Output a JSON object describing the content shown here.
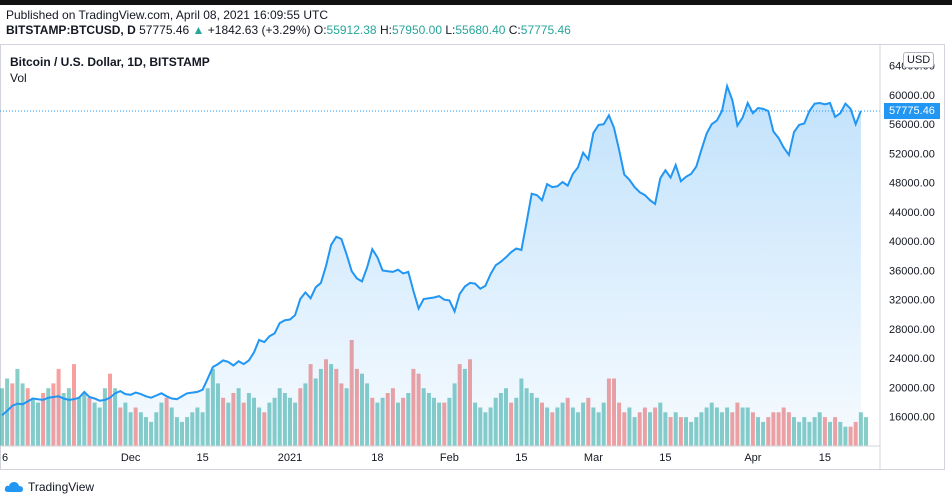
{
  "header": {
    "published": "Published on TradingView.com, April 08, 2021 16:09:55 UTC",
    "symbol": "BITSTAMP:BTCUSD, D",
    "price": "57775.46",
    "change": "+1842.63 (+3.29%)",
    "open_label": "O:",
    "open": "55912.38",
    "high_label": "H:",
    "high": "57950.00",
    "low_label": "L:",
    "low": "55680.40",
    "close_label": "C:",
    "close": "57775.46"
  },
  "legend": {
    "title": "Bitcoin / U.S. Dollar, 1D, BITSTAMP",
    "volume": "Vol",
    "currency": "USD",
    "last_price": "57775.46"
  },
  "brand": {
    "name": "TradingView"
  },
  "colors": {
    "line": "#2196f3",
    "vol_up": "#26a69a",
    "vol_down": "#ef5350",
    "last_price": "#2196f3"
  },
  "chart_data": {
    "type": "area",
    "y_ticks": [
      "64000.00",
      "60000.00",
      "56000.00",
      "52000.00",
      "48000.00",
      "44000.00",
      "40000.00",
      "36000.00",
      "32000.00",
      "28000.00",
      "24000.00",
      "20000.00",
      "16000.00"
    ],
    "y_tick_values": [
      64000,
      60000,
      56000,
      52000,
      48000,
      44000,
      40000,
      36000,
      32000,
      28000,
      24000,
      20000,
      16000
    ],
    "ylim": [
      12000,
      64500
    ],
    "x_ticks": [
      {
        "label": "6",
        "index": 0
      },
      {
        "label": "Dec",
        "index": 25
      },
      {
        "label": "15",
        "index": 39
      },
      {
        "label": "2021",
        "index": 56
      },
      {
        "label": "18",
        "index": 73
      },
      {
        "label": "Feb",
        "index": 87
      },
      {
        "label": "15",
        "index": 101
      },
      {
        "label": "Mar",
        "index": 115
      },
      {
        "label": "15",
        "index": 129
      },
      {
        "label": "Apr",
        "index": 146
      },
      {
        "label": "15",
        "index": 160
      }
    ],
    "x_count": 169,
    "series": [
      {
        "values": [
          16200,
          16800,
          17500,
          17800,
          17700,
          18100,
          18500,
          18400,
          18300,
          18600,
          18700,
          18800,
          18500,
          18300,
          18400,
          18600,
          19400,
          18700,
          18500,
          18200,
          18300,
          18600,
          19200,
          19500,
          19100,
          19000,
          19300,
          19100,
          18800,
          18600,
          18900,
          19200,
          18800,
          18500,
          18400,
          18800,
          19200,
          19300,
          19400,
          19700,
          21200,
          22800,
          23200,
          23700,
          23500,
          23000,
          23600,
          23200,
          23700,
          24800,
          26500,
          26200,
          27000,
          27400,
          28800,
          29200,
          29300,
          29900,
          32100,
          33000,
          32200,
          33700,
          34300,
          36600,
          39500,
          40600,
          40300,
          38200,
          35900,
          34900,
          34500,
          36400,
          38900,
          37800,
          36000,
          35900,
          35800,
          36100,
          35600,
          35800,
          33200,
          30800,
          32100,
          32200,
          32300,
          32500,
          32000,
          31900,
          30400,
          32800,
          33800,
          34300,
          34200,
          33500,
          33900,
          35500,
          36700,
          37200,
          37800,
          38500,
          39000,
          38800,
          42600,
          46500,
          46300,
          45600,
          47800,
          47400,
          47500,
          48100,
          47600,
          49200,
          50100,
          52100,
          51200,
          54800,
          55900,
          56000,
          57200,
          55500,
          52500,
          49100,
          48400,
          47400,
          46700,
          46300,
          45600,
          45100,
          48600,
          49700,
          48700,
          50400,
          48200,
          48800,
          49200,
          50200,
          52500,
          54700,
          56000,
          56500,
          57800,
          61200,
          59300,
          55800,
          56900,
          58900,
          57500,
          58200,
          58100,
          57800,
          55000,
          54100,
          52800,
          51800,
          54900,
          55900,
          56100,
          57800,
          58800,
          58900,
          58700,
          58900,
          57000,
          57500,
          58800,
          58100,
          56000,
          57800
        ]
      }
    ],
    "volume": {
      "values": [
        12,
        14,
        13,
        16,
        13,
        12,
        10,
        9,
        11,
        12,
        13,
        16,
        11,
        12,
        17,
        10,
        11,
        10,
        9,
        8,
        12,
        15,
        12,
        8,
        9,
        7,
        8,
        7,
        6,
        5,
        7,
        9,
        10,
        8,
        6,
        5,
        6,
        7,
        8,
        7,
        12,
        16,
        13,
        10,
        9,
        11,
        12,
        9,
        11,
        10,
        8,
        7,
        9,
        10,
        12,
        11,
        10,
        9,
        12,
        13,
        17,
        14,
        16,
        18,
        17,
        16,
        13,
        12,
        22,
        16,
        15,
        13,
        10,
        9,
        10,
        11,
        12,
        9,
        10,
        11,
        16,
        15,
        12,
        11,
        10,
        9,
        9,
        10,
        13,
        17,
        16,
        18,
        9,
        8,
        7,
        8,
        10,
        11,
        12,
        9,
        10,
        14,
        12,
        11,
        10,
        9,
        8,
        7,
        8,
        9,
        10,
        8,
        7,
        9,
        10,
        8,
        7,
        9,
        14,
        14,
        9,
        7,
        8,
        6,
        7,
        8,
        7,
        8,
        9,
        7,
        6,
        7,
        6,
        6,
        5,
        6,
        7,
        8,
        9,
        8,
        7,
        8,
        7,
        9,
        8,
        8,
        7,
        6,
        5,
        6,
        7,
        7,
        8,
        7,
        6,
        5,
        6,
        5,
        6,
        7,
        6,
        5,
        6,
        5,
        4,
        4,
        5,
        7,
        6
      ],
      "up": [
        1,
        1,
        0,
        1,
        1,
        0,
        1,
        1,
        0,
        1,
        0,
        0,
        1,
        1,
        0,
        1,
        1,
        0,
        1,
        1,
        1,
        0,
        1,
        0,
        1,
        1,
        0,
        1,
        1,
        1,
        1,
        1,
        0,
        1,
        1,
        1,
        1,
        1,
        1,
        1,
        1,
        1,
        1,
        0,
        1,
        0,
        1,
        0,
        1,
        1,
        1,
        0,
        1,
        1,
        1,
        1,
        1,
        1,
        0,
        1,
        0,
        1,
        1,
        0,
        1,
        0,
        0,
        1,
        0,
        0,
        1,
        1,
        0,
        1,
        1,
        0,
        0,
        1,
        0,
        1,
        0,
        0,
        1,
        1,
        1,
        1,
        0,
        1,
        1,
        0,
        1,
        0,
        1,
        1,
        1,
        1,
        1,
        1,
        1,
        0,
        1,
        1,
        1,
        1,
        1,
        0,
        1,
        0,
        1,
        1,
        0,
        1,
        1,
        1,
        0,
        1,
        1,
        1,
        0,
        0,
        0,
        0,
        1,
        1,
        0,
        0,
        1,
        0,
        1,
        1,
        0,
        1,
        0,
        1,
        1,
        1,
        1,
        1,
        1,
        1,
        1,
        1,
        0,
        0,
        1,
        1,
        0,
        1,
        1,
        0,
        0,
        0,
        0,
        0,
        1,
        1,
        1,
        1,
        1,
        1,
        0,
        1,
        0,
        1,
        1,
        0,
        0,
        1,
        1
      ]
    }
  }
}
